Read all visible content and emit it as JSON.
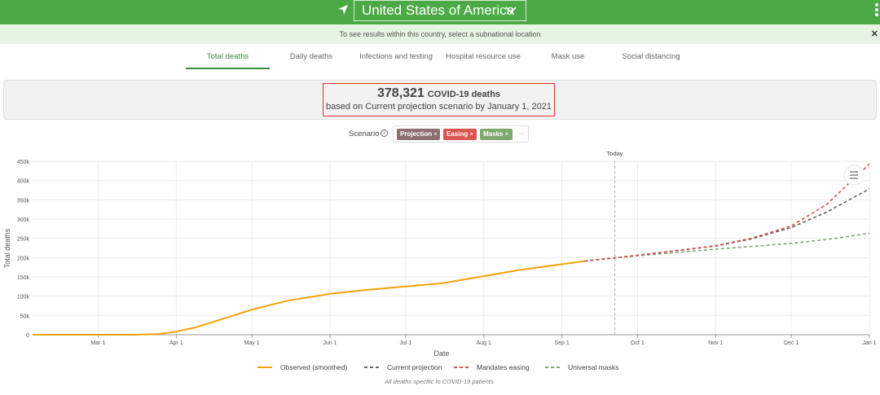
{
  "header": {
    "country": "United States of America",
    "subnational_hint": "To see results within this country, select a subnational location"
  },
  "tabs": [
    {
      "label": "Total deaths",
      "active": true
    },
    {
      "label": "Daily deaths",
      "active": false
    },
    {
      "label": "Infections and testing",
      "active": false
    },
    {
      "label": "Hospital resource use",
      "active": false
    },
    {
      "label": "Mask use",
      "active": false
    },
    {
      "label": "Social distancing",
      "active": false
    }
  ],
  "summary": {
    "value": "378,321",
    "unit": "COVID-19 deaths",
    "subtitle": "based on Current projection scenario by January 1, 2021"
  },
  "scenario": {
    "label": "Scenario",
    "tags": [
      {
        "label": "Projection",
        "color": "#8e6f6f"
      },
      {
        "label": "Easing",
        "color": "#d9534f"
      },
      {
        "label": "Masks",
        "color": "#7fa870"
      }
    ]
  },
  "chart_data": {
    "type": "line",
    "xlabel": "Date",
    "ylabel": "Total deaths",
    "ylim": [
      0,
      450000
    ],
    "y_ticks": [
      "0",
      "50k",
      "100k",
      "150k",
      "200k",
      "250k",
      "300k",
      "350k",
      "400k",
      "450k"
    ],
    "x_ticks": [
      "Mar 1",
      "Apr 1",
      "May 1",
      "Jun 1",
      "Jul 1",
      "Aug 1",
      "Sep 1",
      "Oct 1",
      "Nov 1",
      "Dec 1",
      "Jan 1"
    ],
    "today_label": "Today",
    "today_date": "2020-09-22",
    "grid": true,
    "legend_position": "bottom",
    "footnote": "All deaths specific to COVID-19 patients.",
    "series": [
      {
        "name": "Observed (smoothed)",
        "color": "#f5a20a",
        "dash": "solid",
        "points": [
          [
            "2020-02-04",
            0
          ],
          [
            "2020-03-01",
            0
          ],
          [
            "2020-03-15",
            100
          ],
          [
            "2020-03-25",
            2000
          ],
          [
            "2020-04-01",
            8000
          ],
          [
            "2020-04-08",
            18000
          ],
          [
            "2020-04-15",
            32000
          ],
          [
            "2020-05-01",
            65000
          ],
          [
            "2020-05-15",
            88000
          ],
          [
            "2020-06-01",
            106000
          ],
          [
            "2020-06-15",
            116000
          ],
          [
            "2020-07-01",
            125000
          ],
          [
            "2020-07-15",
            133000
          ],
          [
            "2020-08-01",
            152000
          ],
          [
            "2020-08-15",
            168000
          ],
          [
            "2020-09-01",
            183000
          ],
          [
            "2020-09-10",
            191000
          ]
        ]
      },
      {
        "name": "Current projection",
        "color": "#666666",
        "dash": "dashed",
        "points": [
          [
            "2020-09-10",
            191000
          ],
          [
            "2020-10-01",
            206000
          ],
          [
            "2020-11-01",
            230000
          ],
          [
            "2020-11-15",
            248000
          ],
          [
            "2020-12-01",
            278000
          ],
          [
            "2020-12-15",
            318000
          ],
          [
            "2021-01-01",
            378321
          ]
        ]
      },
      {
        "name": "Mandates easing",
        "color": "#d9534f",
        "dash": "dashed",
        "points": [
          [
            "2020-09-10",
            191000
          ],
          [
            "2020-10-01",
            206000
          ],
          [
            "2020-11-01",
            231000
          ],
          [
            "2020-11-15",
            250000
          ],
          [
            "2020-12-01",
            282000
          ],
          [
            "2020-12-15",
            338000
          ],
          [
            "2021-01-01",
            443000
          ]
        ]
      },
      {
        "name": "Universal masks",
        "color": "#7fa870",
        "dash": "dashed",
        "points": [
          [
            "2020-09-10",
            191000
          ],
          [
            "2020-10-01",
            205000
          ],
          [
            "2020-11-01",
            222000
          ],
          [
            "2020-12-01",
            237000
          ],
          [
            "2020-12-15",
            247000
          ],
          [
            "2021-01-01",
            263000
          ]
        ]
      }
    ]
  }
}
